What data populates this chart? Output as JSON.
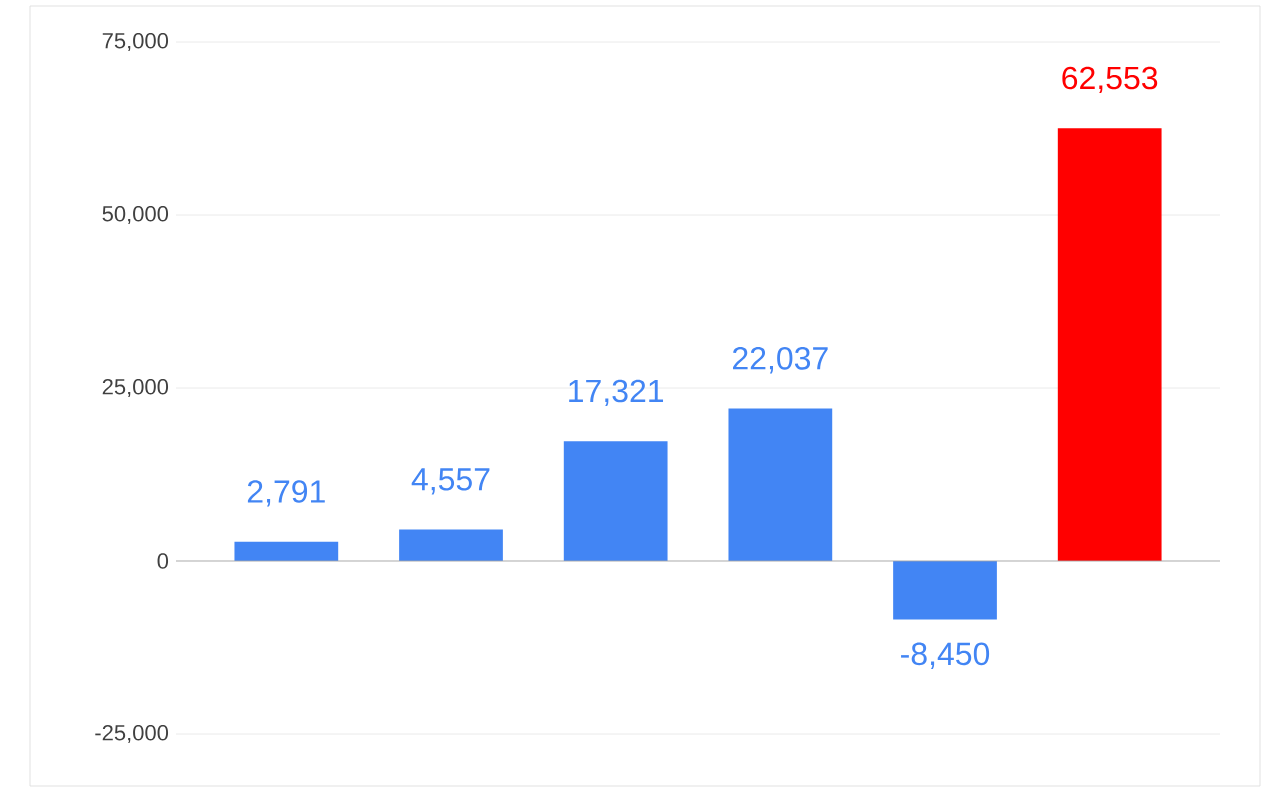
{
  "chart_data": {
    "type": "bar",
    "categories": [
      null,
      null,
      null,
      null,
      null,
      null
    ],
    "values": [
      2791,
      4557,
      17321,
      22037,
      -8450,
      62553
    ],
    "colors": [
      "#4285f4",
      "#4285f4",
      "#4285f4",
      "#4285f4",
      "#4285f4",
      "#ff0000"
    ],
    "value_labels": [
      "2,791",
      "4,557",
      "17,321",
      "22,037",
      "-8,450",
      "62,553"
    ],
    "ylim": [
      -25000,
      75000
    ],
    "yticks": [
      {
        "value": -25000,
        "label": "-25,000"
      },
      {
        "value": 0,
        "label": "0"
      },
      {
        "value": 25000,
        "label": "25,000"
      },
      {
        "value": 50000,
        "label": "50,000"
      },
      {
        "value": 75000,
        "label": "75,000"
      }
    ],
    "grid": "y"
  }
}
